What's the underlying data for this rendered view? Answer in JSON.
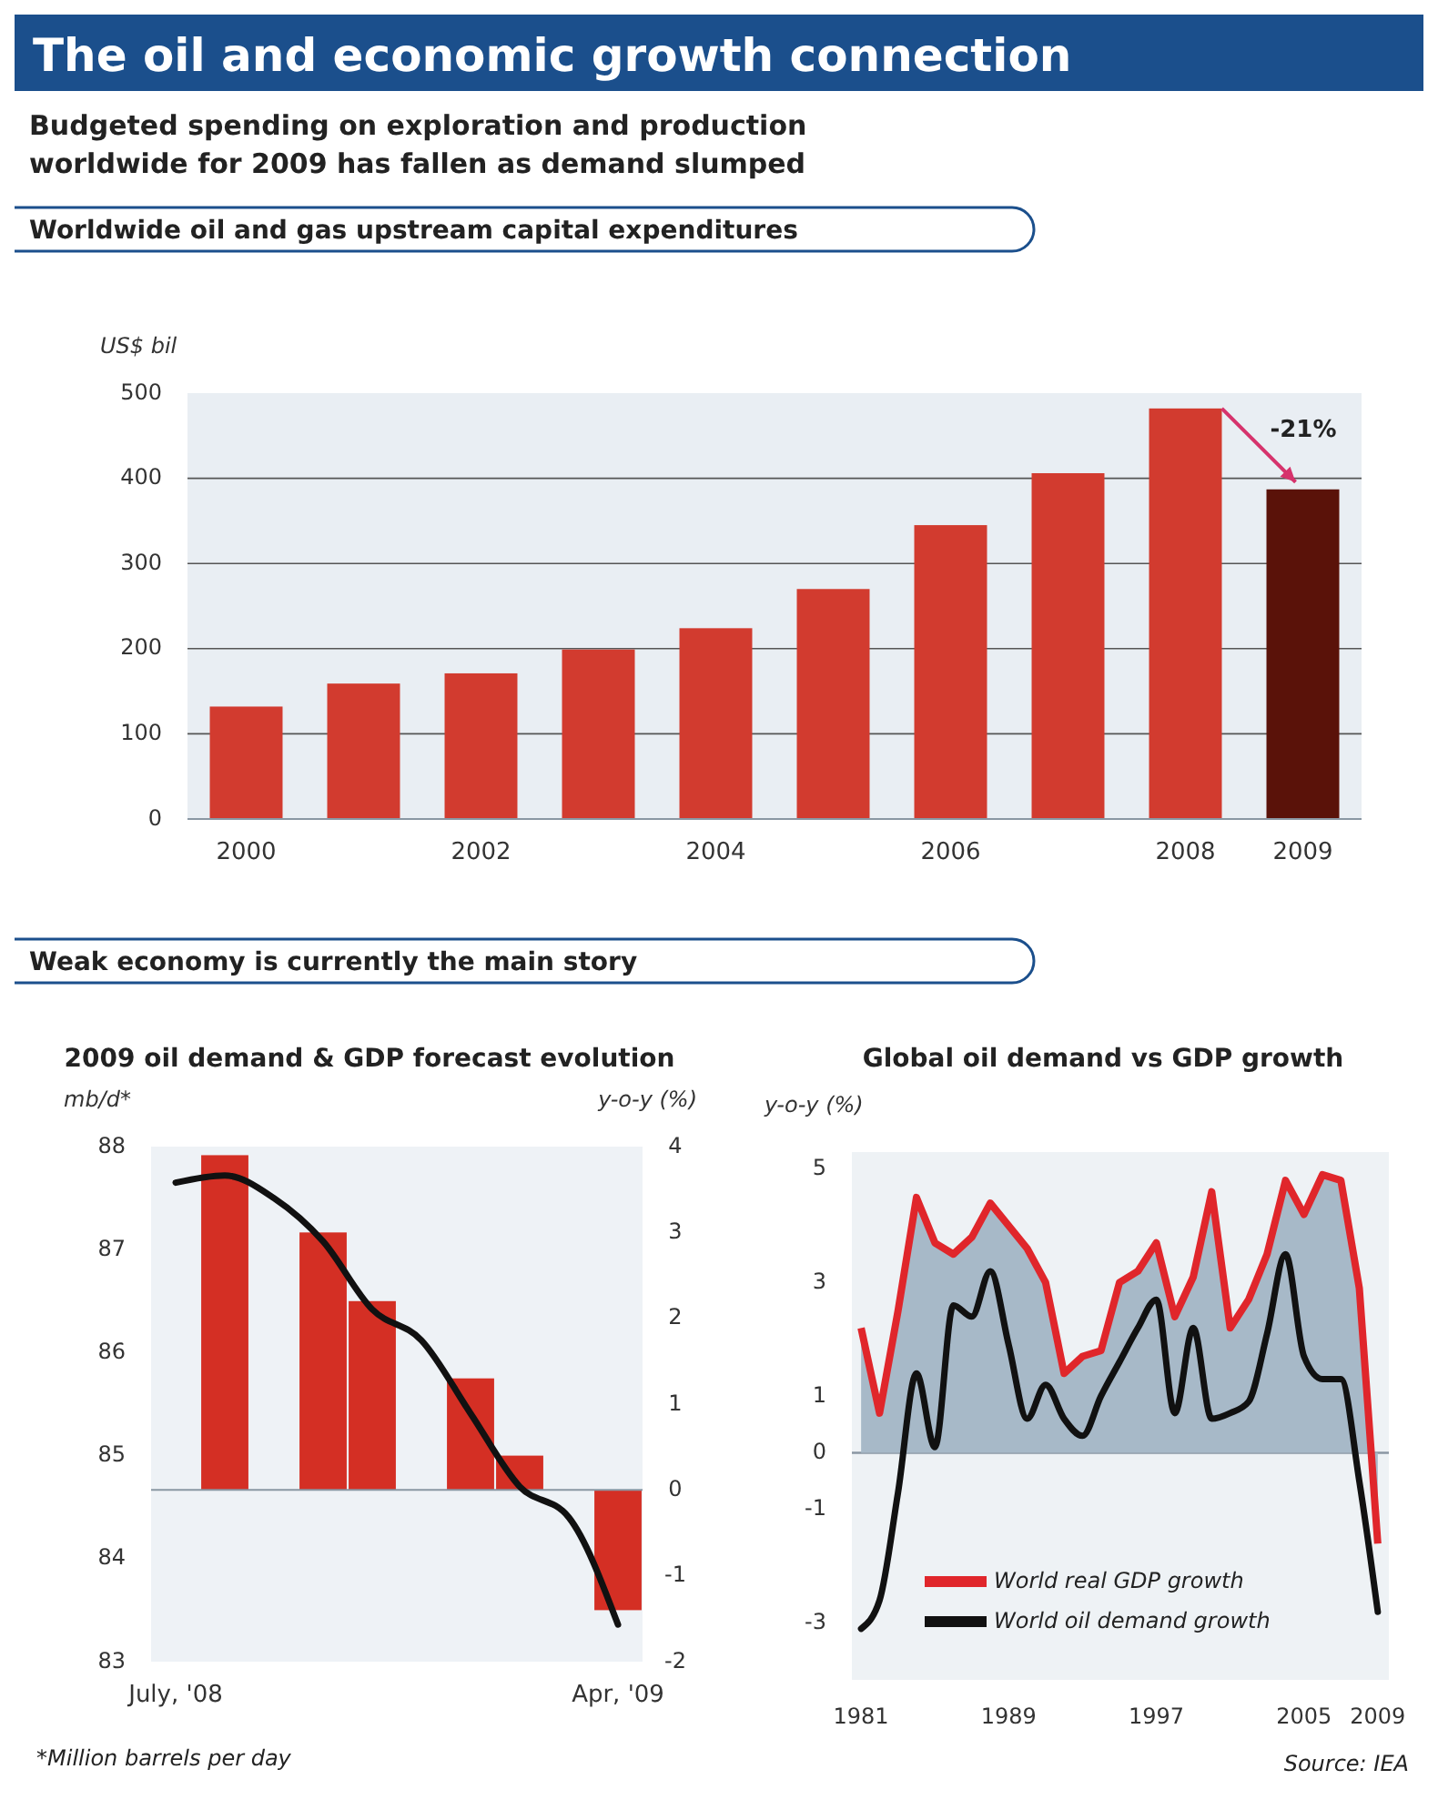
{
  "chart_data": [
    {
      "type": "other",
      "title": "The oil and economic growth connection",
      "subtitle": "Budgeted spending on exploration and production worldwide for 2009 has fallen as demand slumped"
    },
    {
      "type": "bar",
      "title": "Worldwide oil and gas upstream capital expenditures",
      "ylabel": "US$ bil",
      "categories": [
        "2000",
        null,
        "2002",
        null,
        "2004",
        null,
        "2006",
        null,
        "2008",
        "2009"
      ],
      "values": [
        132,
        159,
        171,
        199,
        224,
        270,
        345,
        406,
        482,
        387
      ],
      "colors": [
        "#d23b2f",
        "#d23b2f",
        "#d23b2f",
        "#d23b2f",
        "#d23b2f",
        "#d23b2f",
        "#d23b2f",
        "#d23b2f",
        "#d23b2f",
        "#5a1209"
      ],
      "ylim": [
        0,
        500
      ],
      "yticks": [
        0,
        100,
        200,
        300,
        400,
        500
      ],
      "grid": "y",
      "annotations": [
        "-21%"
      ]
    },
    {
      "type": "other",
      "title": "Weak economy is currently the main story"
    },
    {
      "type": "bar",
      "title": "2009 oil demand & GDP forecast evolution",
      "ylabel": "mb/d*",
      "y2label": "y-o-y (%)",
      "categories": [
        "July, '08",
        null,
        null,
        null,
        null,
        null,
        null,
        null,
        null,
        "Apr, '09"
      ],
      "series": [
        {
          "type": "bar",
          "axis": "y2",
          "color": "#d42f24",
          "values": [
            null,
            3.9,
            null,
            3.0,
            2.2,
            null,
            1.3,
            0.4,
            null,
            -1.4
          ]
        },
        {
          "type": "line",
          "color": "#111111",
          "values": [
            87.65,
            87.72,
            87.5,
            87.08,
            86.42,
            86.12,
            85.41,
            84.7,
            84.4,
            83.36
          ]
        }
      ],
      "ylim": [
        83,
        88
      ],
      "yticks": [
        88,
        87,
        86,
        85,
        84,
        83
      ],
      "y2lim": [
        -2,
        4
      ],
      "y2ticks": [
        4,
        3,
        2,
        1,
        0,
        -1,
        -2
      ],
      "annotations": [
        "*Million barrels per day"
      ]
    },
    {
      "type": "line",
      "title": "Global oil demand vs GDP growth",
      "ylabel": "y-o-y (%)",
      "x": [
        1981,
        1982,
        1983,
        1984,
        1985,
        1986,
        1987,
        1988,
        1989,
        1990,
        1991,
        1992,
        1993,
        1994,
        1995,
        1996,
        1997,
        1998,
        1999,
        2000,
        2001,
        2002,
        2003,
        2004,
        2005,
        2006,
        2007,
        2008,
        2009
      ],
      "series": [
        {
          "name": "World real GDP growth",
          "type": "area",
          "color": "#e0262b",
          "values": [
            2.2,
            0.7,
            2.5,
            4.5,
            3.7,
            3.5,
            3.8,
            4.4,
            4.0,
            3.6,
            3.0,
            1.4,
            1.7,
            1.8,
            3.0,
            3.2,
            3.7,
            2.4,
            3.1,
            4.6,
            2.2,
            2.7,
            3.5,
            4.8,
            4.2,
            4.9,
            4.8,
            2.9,
            -1.6
          ]
        },
        {
          "name": "World oil demand growth",
          "type": "line",
          "color": "#111111",
          "values": [
            -3.1,
            -2.6,
            -0.7,
            1.4,
            0.1,
            2.6,
            2.4,
            3.2,
            1.9,
            0.6,
            1.2,
            0.6,
            0.3,
            1.0,
            1.6,
            2.2,
            2.7,
            0.7,
            2.2,
            0.6,
            0.7,
            0.9,
            2.1,
            3.5,
            1.7,
            1.3,
            1.3,
            -0.5,
            -2.8
          ]
        }
      ],
      "xlim": [
        1980.5,
        2009.6
      ],
      "xticks": [
        1981,
        1989,
        1997,
        2005,
        2009
      ],
      "ylim": [
        -4,
        5.3
      ],
      "yticks": [
        5,
        3,
        1,
        0,
        -1,
        -3
      ],
      "ref_lines": [
        {
          "axis": "y",
          "value": 0,
          "color": "#8a97a3"
        }
      ],
      "legend": "bottom",
      "annotations": [
        "Source: IEA"
      ]
    }
  ]
}
